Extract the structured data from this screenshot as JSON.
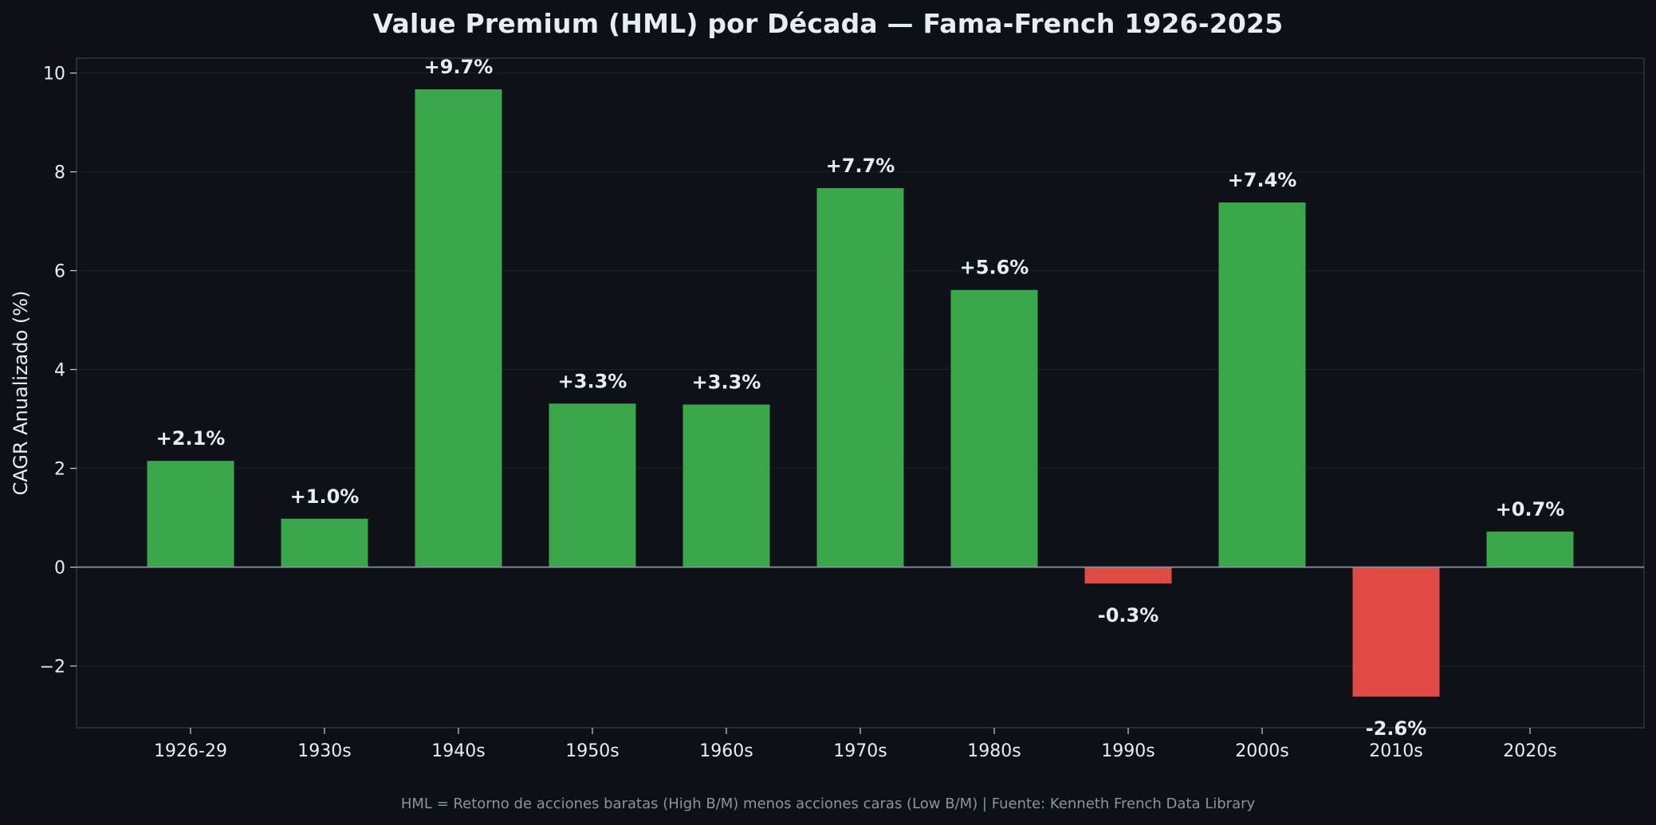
{
  "chart_data": {
    "type": "bar",
    "title": "Value Premium (HML) por Década — Fama-French 1926-2025",
    "xlabel": "",
    "ylabel": "CAGR Anualizado (%)",
    "categories": [
      "1926-29",
      "1930s",
      "1940s",
      "1950s",
      "1960s",
      "1970s",
      "1980s",
      "1990s",
      "2000s",
      "2010s",
      "2020s"
    ],
    "values": [
      2.15,
      0.98,
      9.67,
      3.31,
      3.29,
      7.67,
      5.61,
      -0.33,
      7.38,
      -2.62,
      0.72
    ],
    "data_labels": [
      "+2.1%",
      "+1.0%",
      "+9.7%",
      "+3.3%",
      "+3.3%",
      "+7.7%",
      "+5.6%",
      "-0.3%",
      "+7.4%",
      "-2.6%",
      "+0.7%"
    ],
    "ylim": [
      -3.25,
      10.3
    ],
    "yticks": [
      -2,
      0,
      2,
      4,
      6,
      8,
      10
    ],
    "ytick_labels": [
      "−2",
      "0",
      "2",
      "4",
      "6",
      "8",
      "10"
    ],
    "grid": true,
    "colors": {
      "positive": "#3aa84a",
      "negative": "#e04a44",
      "background": "#0d1117",
      "plot_background": "#0e1117",
      "zero_line": "#8b949e",
      "grid": "#30363d"
    },
    "footnote": "HML = Retorno de acciones baratas (High B/M) menos acciones caras (Low B/M) | Fuente: Kenneth French Data Library"
  }
}
